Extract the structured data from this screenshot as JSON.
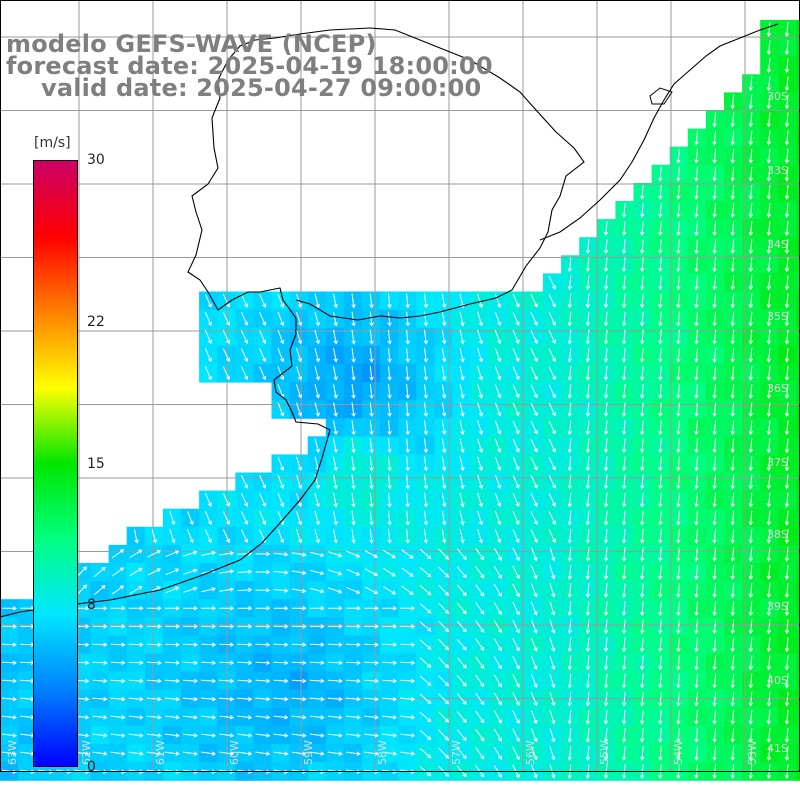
{
  "title": {
    "model": "modelo GEFS-WAVE (NCEP)",
    "forecast": "forecast date: 2025-04-19 18:00:00",
    "valid": "valid date: 2025-04-27 09:00:00"
  },
  "colorbar": {
    "unit": "[m/s]",
    "min": 0,
    "max": 30,
    "ticks": [
      {
        "label": "30",
        "value": 30
      },
      {
        "label": "22",
        "value": 22
      },
      {
        "label": "15",
        "value": 15
      },
      {
        "label": "8",
        "value": 8
      },
      {
        "label": "0",
        "value": 0
      }
    ],
    "colors": [
      "#0000ff",
      "#0080ff",
      "#00e6ff",
      "#00ff80",
      "#00e600",
      "#ffff00",
      "#ff8000",
      "#ff0000",
      "#cc0066"
    ]
  },
  "map": {
    "land_color": "#ffffff",
    "grid_color": "#9a9a9a",
    "coast_color": "#000000",
    "arrow_color": "#ffffff",
    "lat_labels": [
      "30S",
      "33S",
      "34S",
      "35S",
      "36S",
      "37S",
      "38S",
      "39S",
      "40S",
      "41S"
    ],
    "lon_labels": [
      "63W",
      "62W",
      "61W",
      "60W",
      "59W",
      "58W",
      "57W",
      "56W",
      "55W",
      "54W",
      "53W"
    ]
  }
}
